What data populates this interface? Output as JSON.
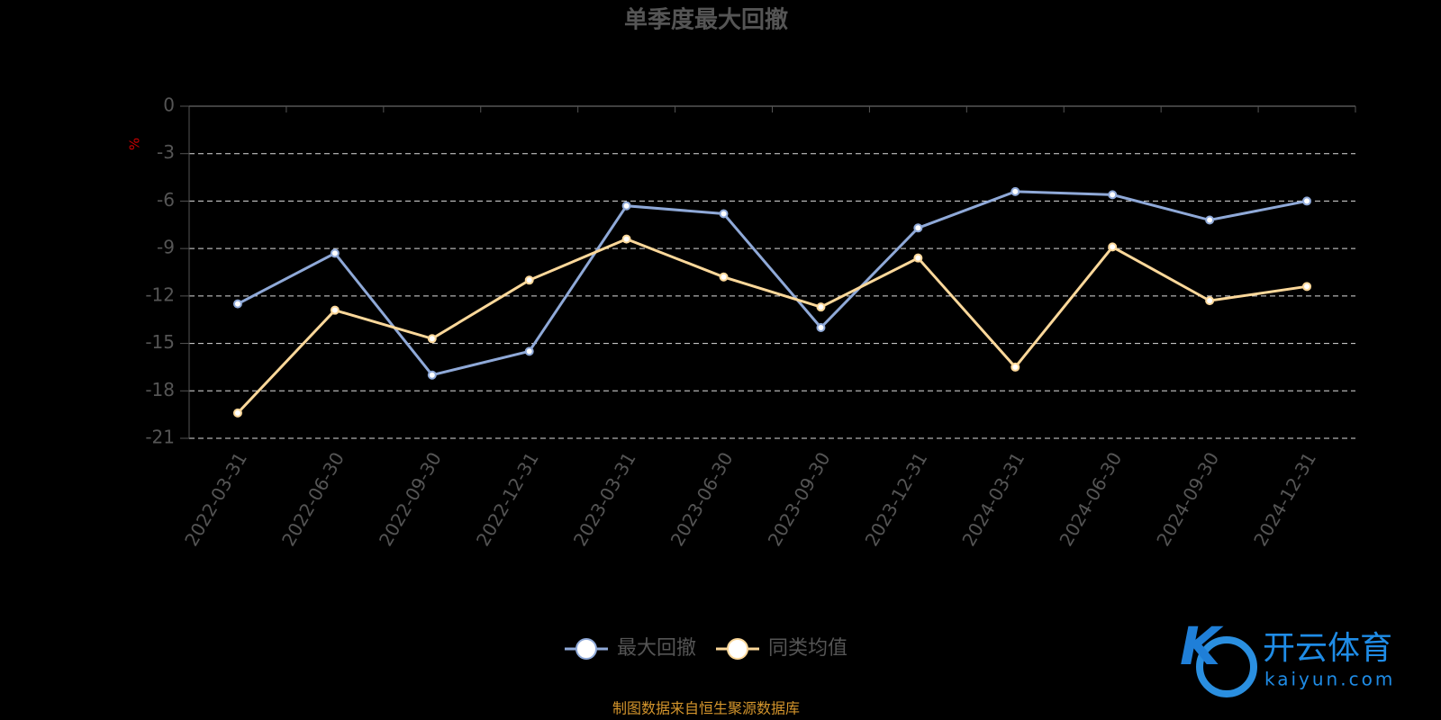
{
  "chart_data": {
    "type": "line",
    "title": "单季度最大回撤",
    "y_label": "%",
    "categories": [
      "2022-03-31",
      "2022-06-30",
      "2022-09-30",
      "2022-12-31",
      "2023-03-31",
      "2023-06-30",
      "2023-09-30",
      "2023-12-31",
      "2024-03-31",
      "2024-06-30",
      "2024-09-30",
      "2024-12-31"
    ],
    "series": [
      {
        "name": "最大回撤",
        "color": "#8fa9d8",
        "values": [
          -12.5,
          -9.3,
          -17.0,
          -15.5,
          -6.3,
          -6.8,
          -14.0,
          -7.7,
          -5.4,
          -5.6,
          -7.2,
          -6.0
        ]
      },
      {
        "name": "同类均值",
        "color": "#fcd89a",
        "values": [
          -19.4,
          -12.9,
          -14.7,
          -11.0,
          -8.4,
          -10.8,
          -12.7,
          -9.6,
          -16.5,
          -8.9,
          -12.3,
          -11.4
        ]
      }
    ],
    "ylim": [
      -21,
      0
    ],
    "yticks": [
      0,
      -3,
      -6,
      -9,
      -12,
      -15,
      -18,
      -21
    ],
    "grid": true,
    "legend": "bottom",
    "source": "制图数据来自恒生聚源数据库",
    "watermark": {
      "brand": "开云体育",
      "site": "kaiyun.com"
    }
  }
}
